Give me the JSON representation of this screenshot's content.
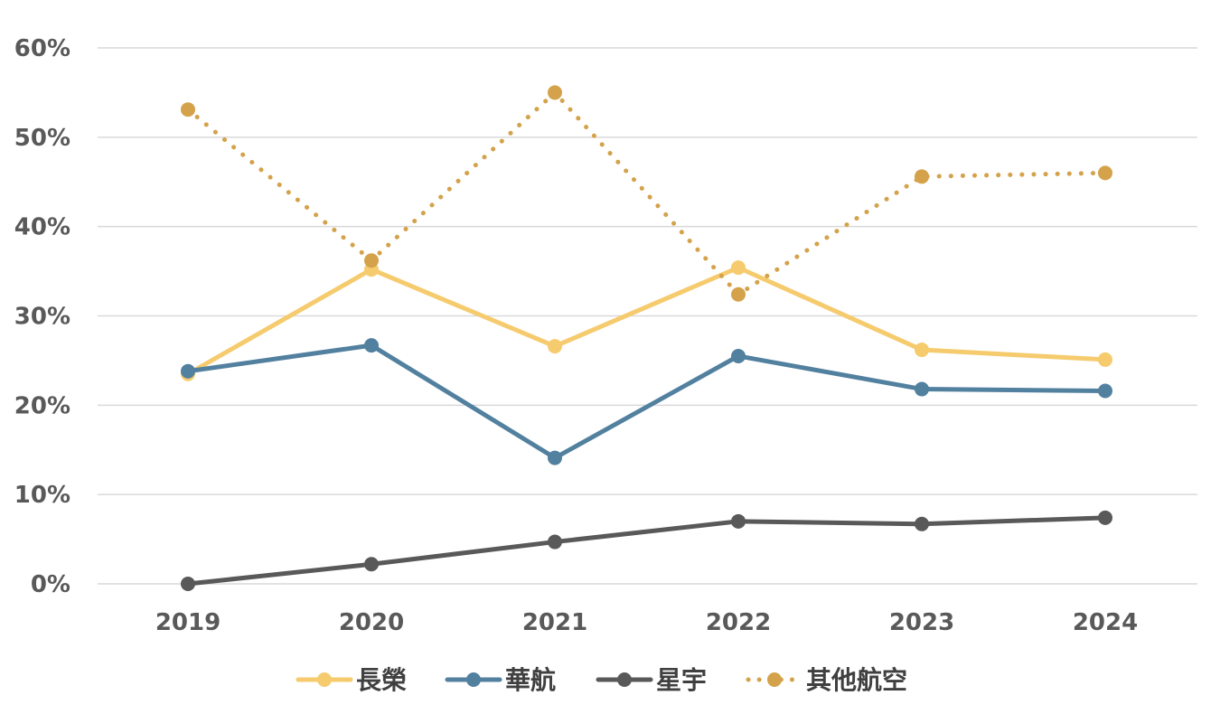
{
  "chart_data": {
    "type": "line",
    "title": "",
    "xlabel": "",
    "ylabel": "",
    "categories": [
      "2019",
      "2020",
      "2021",
      "2022",
      "2023",
      "2024"
    ],
    "ylim": [
      0,
      60
    ],
    "yticks": [
      "0%",
      "10%",
      "20%",
      "30%",
      "40%",
      "50%",
      "60%"
    ],
    "grid": "horizontal",
    "legend_position": "bottom",
    "series": [
      {
        "name": "長榮",
        "color": "#f5cb6e",
        "style": "solid",
        "values": [
          23.5,
          35.2,
          26.6,
          35.4,
          26.2,
          25.1
        ]
      },
      {
        "name": "華航",
        "color": "#52809f",
        "style": "solid",
        "values": [
          23.8,
          26.7,
          14.1,
          25.5,
          21.8,
          21.6
        ]
      },
      {
        "name": "星宇",
        "color": "#595959",
        "style": "solid",
        "values": [
          0.0,
          2.2,
          4.7,
          7.0,
          6.7,
          7.4
        ]
      },
      {
        "name": "其他航空",
        "color": "#d4a24a",
        "style": "dotted",
        "values": [
          53.1,
          36.2,
          55.0,
          32.4,
          45.6,
          46.0
        ]
      }
    ]
  }
}
